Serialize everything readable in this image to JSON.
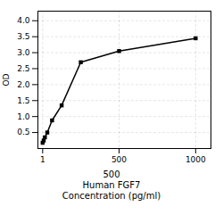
{
  "chart_data": {
    "type": "line",
    "x": [
      1,
      7.8,
      15.6,
      31.25,
      62.5,
      125,
      250,
      500,
      1000
    ],
    "values": [
      0.18,
      0.25,
      0.35,
      0.5,
      0.88,
      1.35,
      2.7,
      3.05,
      3.45
    ],
    "xlim": [
      -30,
      1100
    ],
    "xticks": [
      1,
      500,
      1000
    ],
    "ylim": [
      0.0,
      4.3
    ],
    "yticks": [
      0.5,
      {
        "value": 1,
        "label": "1.0"
      },
      1.5,
      {
        "value": 2,
        "label": "2.0"
      },
      2.5,
      {
        "value": 3,
        "label": "3.0"
      },
      3.5,
      {
        "value": 4,
        "label": "4.0"
      }
    ],
    "ylabel": "OD",
    "annotations": [
      "500",
      "Human FGF7"
    ],
    "xlabel": "Concentration (pg/ml)",
    "grid": true,
    "marker": "square"
  }
}
